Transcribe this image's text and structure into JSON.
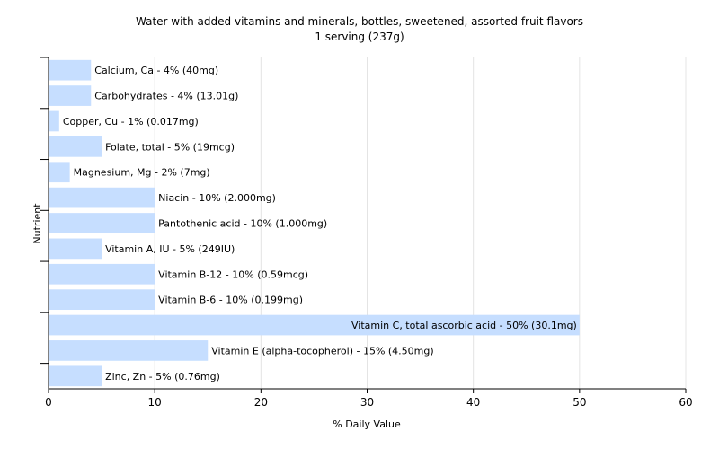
{
  "chart_data": {
    "type": "bar",
    "orientation": "horizontal",
    "title": "Water with added vitamins and minerals, bottles, sweetened, assorted fruit flavors",
    "subtitle": "1 serving (237g)",
    "xlabel": "% Daily Value",
    "ylabel": "Nutrient",
    "xlim": [
      0,
      60
    ],
    "xticks": [
      0,
      10,
      20,
      30,
      40,
      50,
      60
    ],
    "grid": true,
    "bar_color": "#c6deff",
    "categories": [
      "Calcium, Ca",
      "Carbohydrates",
      "Copper, Cu",
      "Folate, total",
      "Magnesium, Mg",
      "Niacin",
      "Pantothenic acid",
      "Vitamin A, IU",
      "Vitamin B-12",
      "Vitamin B-6",
      "Vitamin C, total ascorbic acid",
      "Vitamin E (alpha-tocopherol)",
      "Zinc, Zn"
    ],
    "values": [
      4,
      4,
      1,
      5,
      2,
      10,
      10,
      5,
      10,
      10,
      50,
      15,
      5
    ],
    "data_labels": [
      "Calcium, Ca - 4% (40mg)",
      "Carbohydrates - 4% (13.01g)",
      "Copper, Cu - 1% (0.017mg)",
      "Folate, total - 5% (19mcg)",
      "Magnesium, Mg - 2% (7mg)",
      "Niacin - 10% (2.000mg)",
      "Pantothenic acid - 10% (1.000mg)",
      "Vitamin A, IU - 5% (249IU)",
      "Vitamin B-12 - 10% (0.59mcg)",
      "Vitamin B-6 - 10% (0.199mg)",
      "Vitamin C, total ascorbic acid - 50% (30.1mg)",
      "Vitamin E (alpha-tocopherol) - 15% (4.50mg)",
      "Zinc, Zn - 5% (0.76mg)"
    ]
  }
}
